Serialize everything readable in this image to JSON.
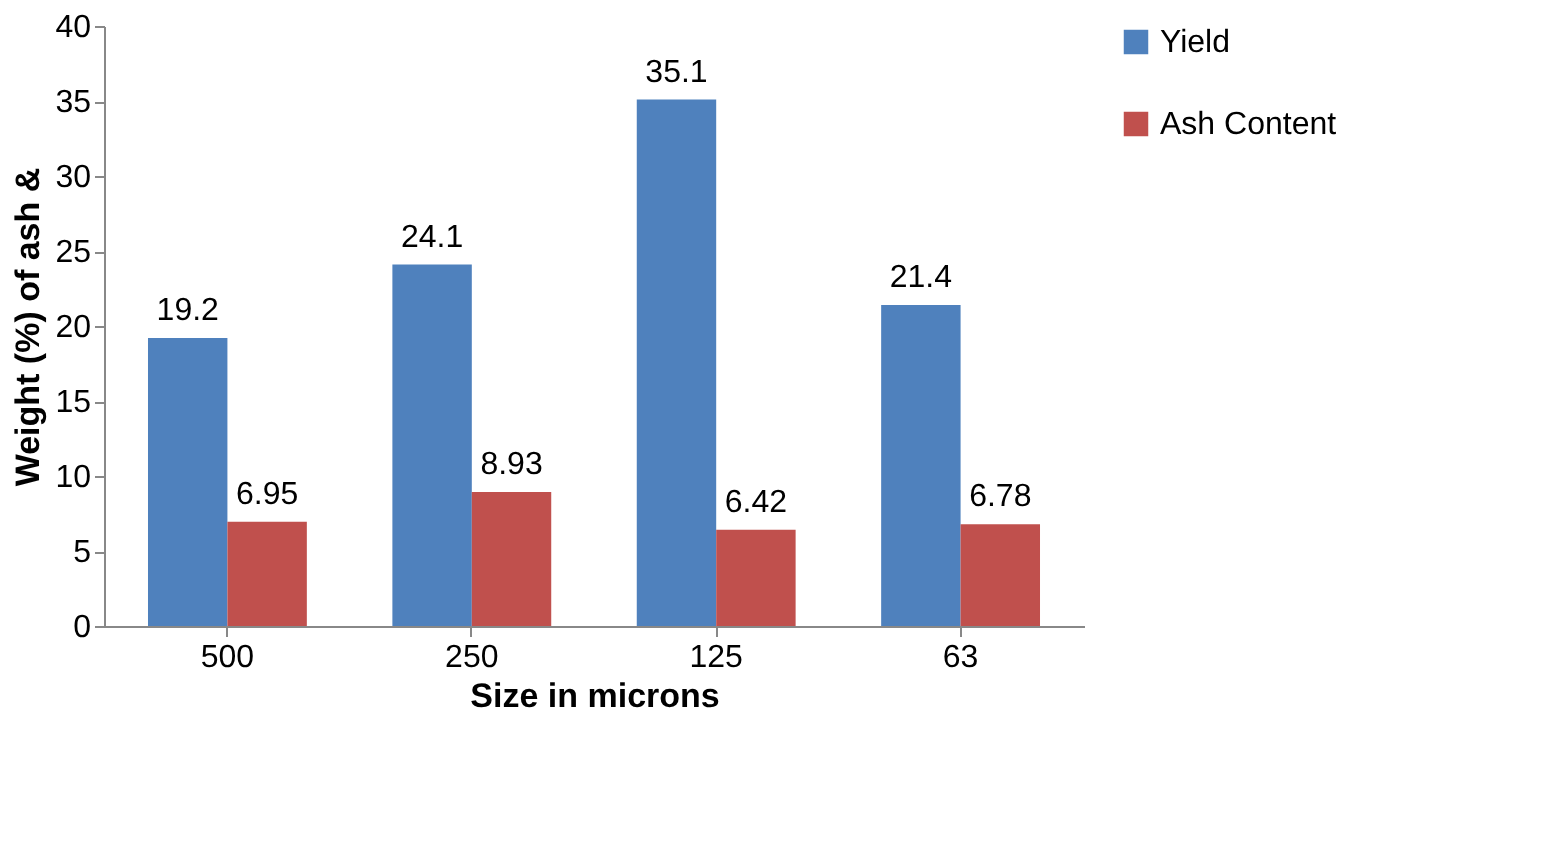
{
  "chart_data": {
    "type": "bar",
    "xlabel": "Size in microns",
    "ylabel": "Weight (%) of ash &",
    "categories": [
      "500",
      "250",
      "125",
      "63"
    ],
    "series": [
      {
        "name": "Yield",
        "color": "#4f81bd",
        "values": [
          19.2,
          24.1,
          35.1,
          21.4
        ]
      },
      {
        "name": "Ash Content",
        "color": "#c0504d",
        "values": [
          6.95,
          8.93,
          6.42,
          6.78
        ]
      }
    ],
    "ylim": [
      0,
      40
    ],
    "yticks": [
      0,
      5,
      10,
      15,
      20,
      25,
      30,
      35,
      40
    ],
    "grid": false,
    "legend": "right",
    "data_labels": true
  }
}
